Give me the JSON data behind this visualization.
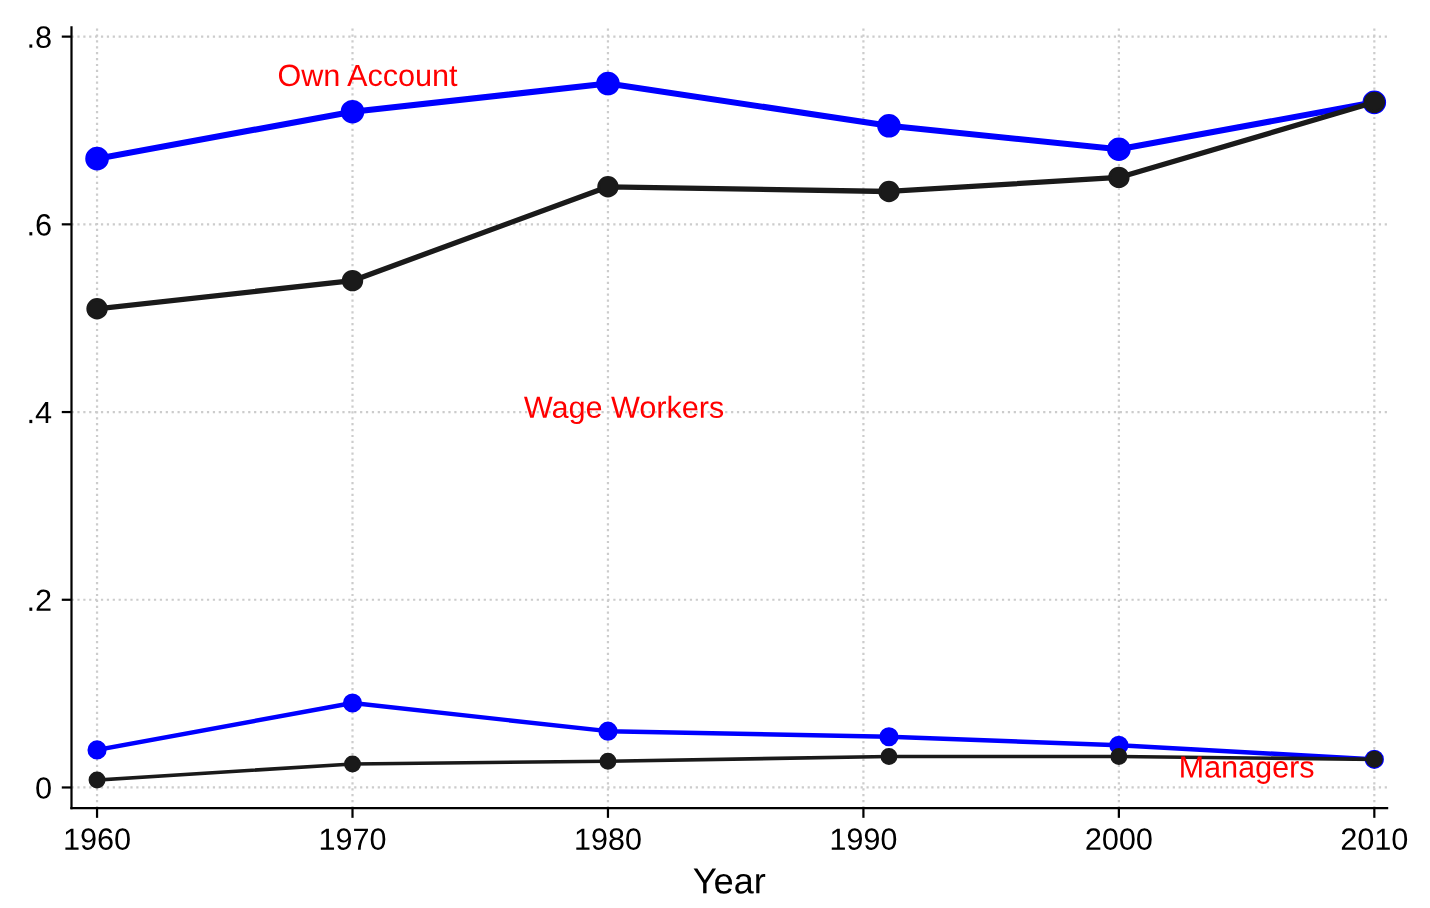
{
  "chart_data": {
    "type": "line",
    "xlabel": "Year",
    "x": [
      1960,
      1970,
      1980,
      1991,
      2000,
      2010
    ],
    "series": [
      {
        "color": "#0000ff",
        "values": [
          0.67,
          0.72,
          0.75,
          0.705,
          0.68,
          0.73
        ]
      },
      {
        "color": "#1a1a1a",
        "values": [
          0.51,
          0.54,
          0.64,
          0.635,
          0.65,
          0.73
        ]
      },
      {
        "color": "#0000ff",
        "values": [
          0.04,
          0.09,
          0.06,
          0.054,
          0.045,
          0.03
        ]
      },
      {
        "color": "#1a1a1a",
        "values": [
          0.008,
          0.025,
          0.028,
          0.033,
          0.033,
          0.03
        ]
      }
    ],
    "xlim": [
      1959,
      2010.5
    ],
    "xticks": [
      1960,
      1970,
      1980,
      1990,
      2000,
      2010
    ],
    "ylim": [
      -0.022,
      0.81
    ],
    "yticks": [
      {
        "value": 0,
        "label": "0"
      },
      {
        "value": 0.2,
        "label": ".2"
      },
      {
        "value": 0.4,
        "label": ".4"
      },
      {
        "value": 0.6,
        "label": ".6"
      },
      {
        "value": 0.8,
        "label": ".8"
      }
    ],
    "grid": true,
    "marker": "circle",
    "line_style": "solid",
    "annotations": [
      "Own Account",
      "Wage Workers",
      {
        "text": "Managers",
        "x": 2005,
        "y": 0.019
      }
    ]
  }
}
